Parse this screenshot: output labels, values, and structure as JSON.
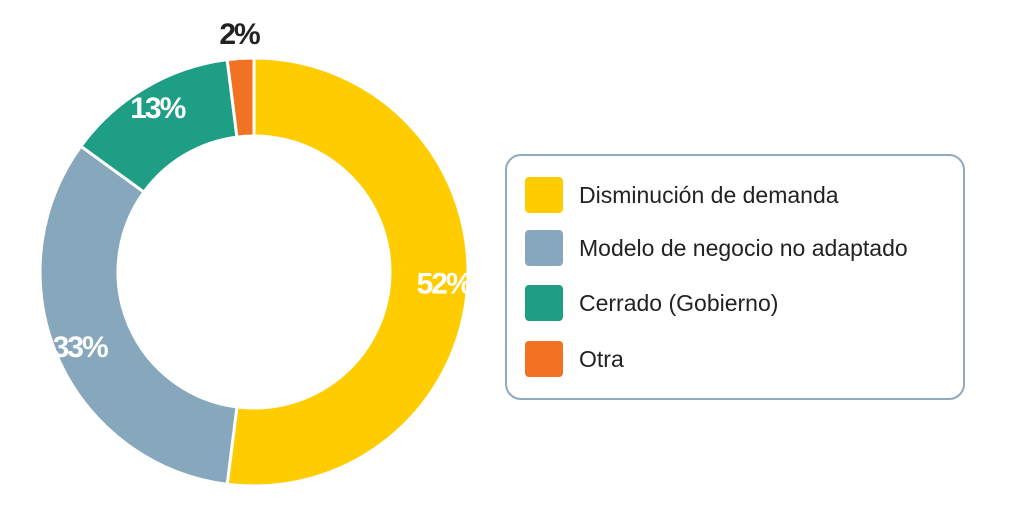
{
  "chart_data": {
    "type": "pie",
    "variant": "donut",
    "title": "",
    "categories": [
      "Disminución de demanda",
      "Modelo de negocio no adaptado",
      "Cerrado (Gobierno)",
      "Otra"
    ],
    "values": [
      52,
      33,
      13,
      2
    ],
    "value_labels": [
      "52%",
      "33%",
      "13%",
      "2%"
    ],
    "colors": [
      "#FFCC00",
      "#87A7BD",
      "#1E9E84",
      "#F07222"
    ],
    "label_colors": [
      "#ffffff",
      "#ffffff",
      "#ffffff",
      "#222222"
    ],
    "legend_position": "right"
  },
  "legend": {
    "items": [
      {
        "label": "Disminución de demanda",
        "color": "#FFCC00"
      },
      {
        "label": "Modelo de negocio no adaptado",
        "color": "#87A7BD"
      },
      {
        "label": "Cerrado (Gobierno)",
        "color": "#1E9E84"
      },
      {
        "label": "Otra",
        "color": "#F07222"
      }
    ]
  }
}
